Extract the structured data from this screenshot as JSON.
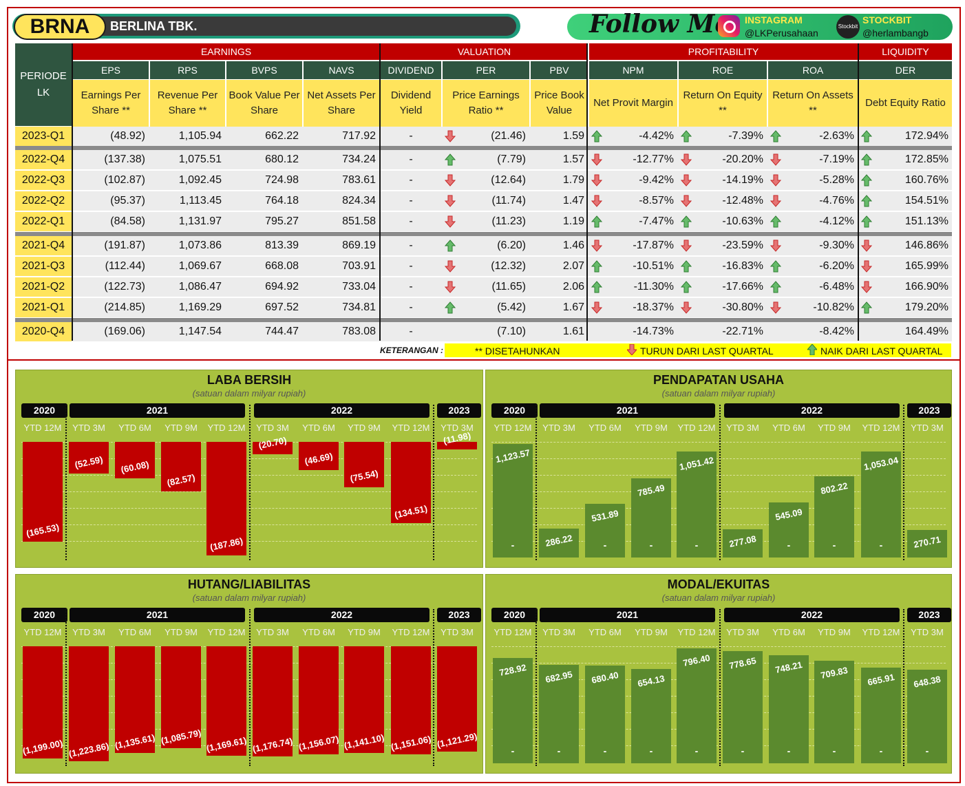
{
  "header": {
    "ticker": "BRNA",
    "company": "BERLINA TBK.",
    "follow": "Follow Me",
    "instagram_label": "INSTAGRAM",
    "instagram_handle": "@LKPerusahaan",
    "stockbit_label": "STOCKBIT",
    "stockbit_icon": "Stockbit",
    "stockbit_handle": "@herlambangb"
  },
  "table": {
    "periode_header": "PERIODE LK",
    "groups": [
      "EARNINGS",
      "VALUATION",
      "PROFITABILITY",
      "LIQUIDITY"
    ],
    "columns": [
      {
        "abbr": "EPS",
        "desc": "Earnings Per Share **"
      },
      {
        "abbr": "RPS",
        "desc": "Revenue Per Share **"
      },
      {
        "abbr": "BVPS",
        "desc": "Book Value Per Share"
      },
      {
        "abbr": "NAVS",
        "desc": "Net Assets Per Share"
      },
      {
        "abbr": "DIVIDEND",
        "desc": "Dividend Yield"
      },
      {
        "abbr": "PER",
        "desc": "Price Earnings Ratio **"
      },
      {
        "abbr": "PBV",
        "desc": "Price Book Value"
      },
      {
        "abbr": "NPM",
        "desc": "Net Provit Margin"
      },
      {
        "abbr": "ROE",
        "desc": "Return On Equity **"
      },
      {
        "abbr": "ROA",
        "desc": "Return On Assets **"
      },
      {
        "abbr": "DER",
        "desc": "Debt Equity Ratio"
      }
    ],
    "rows": [
      {
        "periode": "2023-Q1",
        "eps": "(48.92)",
        "rps": "1,105.94",
        "bvps": "662.22",
        "navs": "717.92",
        "div": "-",
        "per": "(21.46)",
        "per_dir": "down",
        "pbv": "1.59",
        "npm": "-4.42%",
        "npm_dir": "up",
        "roe": "-7.39%",
        "roe_dir": "up",
        "roa": "-2.63%",
        "roa_dir": "up",
        "der": "172.94%",
        "der_dir": "up"
      },
      {
        "periode": "2022-Q4",
        "eps": "(137.38)",
        "rps": "1,075.51",
        "bvps": "680.12",
        "navs": "734.24",
        "div": "-",
        "per": "(7.79)",
        "per_dir": "up",
        "pbv": "1.57",
        "npm": "-12.77%",
        "npm_dir": "down",
        "roe": "-20.20%",
        "roe_dir": "down",
        "roa": "-7.19%",
        "roa_dir": "down",
        "der": "172.85%",
        "der_dir": "up"
      },
      {
        "periode": "2022-Q3",
        "eps": "(102.87)",
        "rps": "1,092.45",
        "bvps": "724.98",
        "navs": "783.61",
        "div": "-",
        "per": "(12.64)",
        "per_dir": "down",
        "pbv": "1.79",
        "npm": "-9.42%",
        "npm_dir": "down",
        "roe": "-14.19%",
        "roe_dir": "down",
        "roa": "-5.28%",
        "roa_dir": "down",
        "der": "160.76%",
        "der_dir": "up"
      },
      {
        "periode": "2022-Q2",
        "eps": "(95.37)",
        "rps": "1,113.45",
        "bvps": "764.18",
        "navs": "824.34",
        "div": "-",
        "per": "(11.74)",
        "per_dir": "down",
        "pbv": "1.47",
        "npm": "-8.57%",
        "npm_dir": "down",
        "roe": "-12.48%",
        "roe_dir": "down",
        "roa": "-4.76%",
        "roa_dir": "down",
        "der": "154.51%",
        "der_dir": "up"
      },
      {
        "periode": "2022-Q1",
        "eps": "(84.58)",
        "rps": "1,131.97",
        "bvps": "795.27",
        "navs": "851.58",
        "div": "-",
        "per": "(11.23)",
        "per_dir": "down",
        "pbv": "1.19",
        "npm": "-7.47%",
        "npm_dir": "up",
        "roe": "-10.63%",
        "roe_dir": "up",
        "roa": "-4.12%",
        "roa_dir": "up",
        "der": "151.13%",
        "der_dir": "up"
      },
      {
        "periode": "2021-Q4",
        "eps": "(191.87)",
        "rps": "1,073.86",
        "bvps": "813.39",
        "navs": "869.19",
        "div": "-",
        "per": "(6.20)",
        "per_dir": "up",
        "pbv": "1.46",
        "npm": "-17.87%",
        "npm_dir": "down",
        "roe": "-23.59%",
        "roe_dir": "down",
        "roa": "-9.30%",
        "roa_dir": "down",
        "der": "146.86%",
        "der_dir": "down"
      },
      {
        "periode": "2021-Q3",
        "eps": "(112.44)",
        "rps": "1,069.67",
        "bvps": "668.08",
        "navs": "703.91",
        "div": "-",
        "per": "(12.32)",
        "per_dir": "down",
        "pbv": "2.07",
        "npm": "-10.51%",
        "npm_dir": "up",
        "roe": "-16.83%",
        "roe_dir": "up",
        "roa": "-6.20%",
        "roa_dir": "up",
        "der": "165.99%",
        "der_dir": "down"
      },
      {
        "periode": "2021-Q2",
        "eps": "(122.73)",
        "rps": "1,086.47",
        "bvps": "694.92",
        "navs": "733.04",
        "div": "-",
        "per": "(11.65)",
        "per_dir": "down",
        "pbv": "2.06",
        "npm": "-11.30%",
        "npm_dir": "up",
        "roe": "-17.66%",
        "roe_dir": "up",
        "roa": "-6.48%",
        "roa_dir": "up",
        "der": "166.90%",
        "der_dir": "down"
      },
      {
        "periode": "2021-Q1",
        "eps": "(214.85)",
        "rps": "1,169.29",
        "bvps": "697.52",
        "navs": "734.81",
        "div": "-",
        "per": "(5.42)",
        "per_dir": "up",
        "pbv": "1.67",
        "npm": "-18.37%",
        "npm_dir": "down",
        "roe": "-30.80%",
        "roe_dir": "down",
        "roa": "-10.82%",
        "roa_dir": "down",
        "der": "179.20%",
        "der_dir": "up"
      },
      {
        "periode": "2020-Q4",
        "eps": "(169.06)",
        "rps": "1,147.54",
        "bvps": "744.47",
        "navs": "783.08",
        "div": "-",
        "per": "(7.10)",
        "per_dir": "",
        "pbv": "1.61",
        "npm": "-14.73%",
        "npm_dir": "",
        "roe": "-22.71%",
        "roe_dir": "",
        "roa": "-8.42%",
        "roa_dir": "",
        "der": "164.49%",
        "der_dir": ""
      }
    ]
  },
  "legend": {
    "keterangan": "KETERANGAN :",
    "annualized": "** DISETAHUNKAN",
    "down": "TURUN DARI LAST QUARTAL",
    "up": "NAIK DARI LAST QUARTAL"
  },
  "colors": {
    "red": "#c00000",
    "green": "#5b8a2e",
    "panel": "#a9c23f",
    "yellow": "#ffe45c",
    "dark_green": "#2f5540"
  },
  "chart_data": [
    {
      "type": "bar",
      "title": "LABA BERSIH",
      "subtitle": "(satuan dalam milyar rupiah)",
      "years": [
        "2020",
        "2021",
        "2022",
        "2023"
      ],
      "categories": [
        "YTD 12M",
        "YTD 3M",
        "YTD 6M",
        "YTD 9M",
        "YTD 12M",
        "YTD 3M",
        "YTD 6M",
        "YTD 9M",
        "YTD 12M",
        "YTD 3M"
      ],
      "values": [
        -165.53,
        -52.59,
        -60.08,
        -82.57,
        -187.86,
        -20.7,
        -46.69,
        -75.54,
        -134.51,
        -11.98
      ],
      "labels": [
        "(165.53)",
        "(52.59)",
        "(60.08)",
        "(82.57)",
        "(187.86)",
        "(20.70)",
        "(46.69)",
        "(75.54)",
        "(134.51)",
        "(11.98)"
      ],
      "color": "#c00000"
    },
    {
      "type": "bar",
      "title": "PENDAPATAN USAHA",
      "subtitle": "(satuan dalam milyar rupiah)",
      "years": [
        "2020",
        "2021",
        "2022",
        "2023"
      ],
      "categories": [
        "YTD 12M",
        "YTD 3M",
        "YTD 6M",
        "YTD 9M",
        "YTD 12M",
        "YTD 3M",
        "YTD 6M",
        "YTD 9M",
        "YTD 12M",
        "YTD 3M"
      ],
      "values": [
        1123.57,
        286.22,
        531.89,
        785.49,
        1051.42,
        277.08,
        545.09,
        802.22,
        1053.04,
        270.71
      ],
      "labels": [
        "1,123.57",
        "286.22",
        "531.89",
        "785.49",
        "1,051.42",
        "277.08",
        "545.09",
        "802.22",
        "1,053.04",
        "270.71"
      ],
      "color": "#5b8a2e"
    },
    {
      "type": "bar",
      "title": "HUTANG/LIABILITAS",
      "subtitle": "(satuan dalam milyar rupiah)",
      "years": [
        "2020",
        "2021",
        "2022",
        "2023"
      ],
      "categories": [
        "YTD 12M",
        "YTD 3M",
        "YTD 6M",
        "YTD 9M",
        "YTD 12M",
        "YTD 3M",
        "YTD 6M",
        "YTD 9M",
        "YTD 12M",
        "YTD 3M"
      ],
      "values": [
        -1199.0,
        -1223.86,
        -1135.61,
        -1085.79,
        -1169.61,
        -1176.74,
        -1156.07,
        -1141.1,
        -1151.06,
        -1121.29
      ],
      "labels": [
        "(1,199.00)",
        "(1,223.86)",
        "(1,135.61)",
        "(1,085.79)",
        "(1,169.61)",
        "(1,176.74)",
        "(1,156.07)",
        "(1,141.10)",
        "(1,151.06)",
        "(1,121.29)"
      ],
      "color": "#c00000"
    },
    {
      "type": "bar",
      "title": "MODAL/EKUITAS",
      "subtitle": "(satuan dalam milyar rupiah)",
      "years": [
        "2020",
        "2021",
        "2022",
        "2023"
      ],
      "categories": [
        "YTD 12M",
        "YTD 3M",
        "YTD 6M",
        "YTD 9M",
        "YTD 12M",
        "YTD 3M",
        "YTD 6M",
        "YTD 9M",
        "YTD 12M",
        "YTD 3M"
      ],
      "values": [
        728.92,
        682.95,
        680.4,
        654.13,
        796.4,
        778.65,
        748.21,
        709.83,
        665.91,
        648.38
      ],
      "labels": [
        "728.92",
        "682.95",
        "680.40",
        "654.13",
        "796.40",
        "778.65",
        "748.21",
        "709.83",
        "665.91",
        "648.38"
      ],
      "color": "#5b8a2e"
    }
  ]
}
